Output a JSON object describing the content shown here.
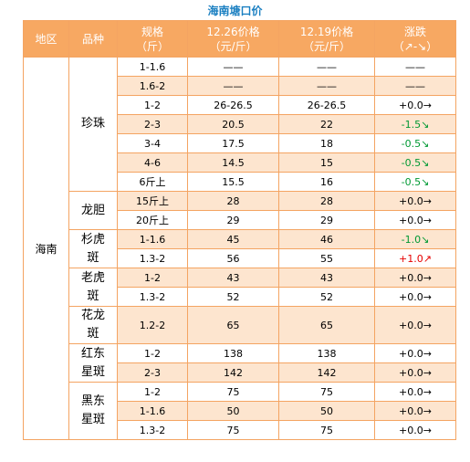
{
  "header": {
    "title": "海南塘口价",
    "columns": [
      [
        "地区"
      ],
      [
        "品种"
      ],
      [
        "规格",
        "（斤）"
      ],
      [
        "12.26价格",
        "（元/斤）"
      ],
      [
        "12.19价格",
        "（元/斤）"
      ],
      [
        "涨跌",
        "（↗-↘）"
      ]
    ]
  },
  "table": {
    "region": "海南",
    "varieties": [
      {
        "name": "珍珠",
        "rows": [
          {
            "spec": "1-1.6",
            "now": "——",
            "prev": "——",
            "change": "——",
            "color": "#000000"
          },
          {
            "spec": "1.6-2",
            "now": "——",
            "prev": "——",
            "change": "——",
            "color": "#000000"
          },
          {
            "spec": "1-2",
            "now": "26-26.5",
            "prev": "26-26.5",
            "change": "+0.0→",
            "color": "#000000"
          },
          {
            "spec": "2-3",
            "now": "20.5",
            "prev": "22",
            "change": "-1.5↘",
            "color": "#009933"
          },
          {
            "spec": "3-4",
            "now": "17.5",
            "prev": "18",
            "change": "-0.5↘",
            "color": "#009933"
          },
          {
            "spec": "4-6",
            "now": "14.5",
            "prev": "15",
            "change": "-0.5↘",
            "color": "#009933"
          },
          {
            "spec": "6斤上",
            "now": "15.5",
            "prev": "16",
            "change": "-0.5↘",
            "color": "#009933"
          }
        ]
      },
      {
        "name": "龙胆",
        "rows": [
          {
            "spec": "15斤上",
            "now": "28",
            "prev": "28",
            "change": "+0.0→",
            "color": "#000000"
          },
          {
            "spec": "20斤上",
            "now": "29",
            "prev": "29",
            "change": "+0.0→",
            "color": "#000000"
          }
        ]
      },
      {
        "name": "杉虎斑",
        "rows": [
          {
            "spec": "1-1.6",
            "now": "45",
            "prev": "46",
            "change": "-1.0↘",
            "color": "#009933"
          },
          {
            "spec": "1.3-2",
            "now": "56",
            "prev": "55",
            "change": "+1.0↗",
            "color": "#e60000"
          }
        ]
      },
      {
        "name": "老虎斑",
        "rows": [
          {
            "spec": "1-2",
            "now": "43",
            "prev": "43",
            "change": "+0.0→",
            "color": "#000000"
          },
          {
            "spec": "1.3-2",
            "now": "52",
            "prev": "52",
            "change": "+0.0→",
            "color": "#000000"
          }
        ]
      },
      {
        "name": "花龙斑",
        "rows": [
          {
            "spec": "1.2-2",
            "now": "65",
            "prev": "65",
            "change": "+0.0→",
            "color": "#000000"
          }
        ]
      },
      {
        "name": "红东星斑",
        "rows": [
          {
            "spec": "1-2",
            "now": "138",
            "prev": "138",
            "change": "+0.0→",
            "color": "#000000"
          },
          {
            "spec": "2-3",
            "now": "142",
            "prev": "142",
            "change": "+0.0→",
            "color": "#000000"
          }
        ]
      },
      {
        "name": "黑东星斑",
        "rows": [
          {
            "spec": "1-2",
            "now": "75",
            "prev": "75",
            "change": "+0.0→",
            "color": "#000000"
          },
          {
            "spec": "1-1.6",
            "now": "50",
            "prev": "50",
            "change": "+0.0→",
            "color": "#000000"
          },
          {
            "spec": "1.3-2",
            "now": "75",
            "prev": "75",
            "change": "+0.0→",
            "color": "#000000"
          }
        ]
      }
    ]
  }
}
